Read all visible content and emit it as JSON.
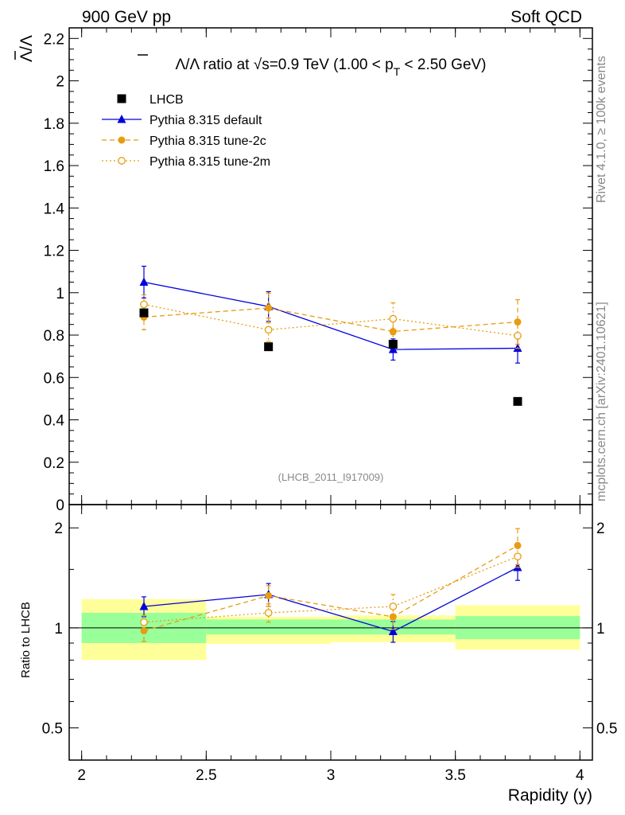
{
  "header": {
    "left": "900 GeV pp",
    "right": "Soft QCD",
    "side_top": "Rivet 4.1.0, ≥ 100k events",
    "side_bottom": "mcplots.cern.ch [arXiv:2401.10621]",
    "analysis_id": "(LHCB_2011_I917009)"
  },
  "chart_data": [
    {
      "type": "scatter",
      "panel": "main",
      "title": "Λ̅/Λ ratio at √s=0.9 TeV (1.00 < pT < 2.50 GeV)",
      "title_parts": {
        "pre": "Λ/Λ ratio at ",
        "root": "√",
        "s_rest": "s=0.9 TeV (1.00 < p",
        "sub": "T",
        "post": " < 2.50 GeV)"
      },
      "ylabel": "Λ/Λ",
      "xlim": [
        1.95,
        4.05
      ],
      "ylim": [
        0,
        2.25
      ],
      "yticks": [
        0,
        0.2,
        0.4,
        0.6,
        0.8,
        1,
        1.2,
        1.4,
        1.6,
        1.8,
        2,
        2.2
      ],
      "ytick_labels": [
        "0",
        "0.2",
        "0.4",
        "0.6",
        "0.8",
        "1",
        "1.2",
        "1.4",
        "1.6",
        "1.8",
        "2",
        "2.2"
      ],
      "legend_position": "top-left",
      "series": [
        {
          "name": "LHCB",
          "color": "#000000",
          "style": "data",
          "x": [
            2.25,
            2.75,
            3.25,
            3.75
          ],
          "y": [
            0.905,
            0.745,
            0.757,
            0.487
          ],
          "err": [
            0,
            0,
            0,
            0
          ]
        },
        {
          "name": "Pythia 8.315 default",
          "color": "#0000dd",
          "style": "solid",
          "marker": "triangle",
          "x": [
            2.25,
            2.75,
            3.25,
            3.75
          ],
          "y": [
            1.05,
            0.935,
            0.732,
            0.738
          ],
          "err": [
            0.075,
            0.07,
            0.05,
            0.07
          ]
        },
        {
          "name": "Pythia 8.315 tune-2c",
          "color": "#e89c10",
          "style": "dashed",
          "marker": "circle",
          "x": [
            2.25,
            2.75,
            3.25,
            3.75
          ],
          "y": [
            0.885,
            0.928,
            0.817,
            0.862
          ],
          "err": [
            0.06,
            0.07,
            0.07,
            0.105
          ]
        },
        {
          "name": "Pythia 8.315 tune-2m",
          "color": "#e89c10",
          "style": "dotted",
          "marker": "open-circle",
          "x": [
            2.25,
            2.75,
            3.25,
            3.75
          ],
          "y": [
            0.945,
            0.825,
            0.877,
            0.797
          ],
          "err": [
            0.045,
            0.055,
            0.075,
            0.06
          ]
        }
      ]
    },
    {
      "type": "scatter",
      "panel": "ratio",
      "ylabel": "Ratio to LHCB",
      "xlabel": "Rapidity (y)",
      "xlim": [
        1.95,
        4.05
      ],
      "ylim": [
        0.4,
        2.35
      ],
      "yscale": "log",
      "xticks": [
        2,
        2.5,
        3,
        3.5,
        4
      ],
      "xtick_labels": [
        "2",
        "2.5",
        "3",
        "3.5",
        "4"
      ],
      "yticks": [
        0.5,
        1,
        2
      ],
      "ytick_labels": [
        "0.5",
        "1",
        "2"
      ],
      "bands": [
        {
          "x": [
            2.0,
            2.5
          ],
          "inner": [
            0.9,
            1.11
          ],
          "outer": [
            0.8,
            1.22
          ]
        },
        {
          "x": [
            2.5,
            3.0
          ],
          "inner": [
            0.955,
            1.06
          ],
          "outer": [
            0.895,
            1.08
          ]
        },
        {
          "x": [
            3.0,
            3.5
          ],
          "inner": [
            0.955,
            1.06
          ],
          "outer": [
            0.905,
            1.09
          ]
        },
        {
          "x": [
            3.5,
            4.0
          ],
          "inner": [
            0.925,
            1.085
          ],
          "outer": [
            0.86,
            1.17
          ]
        }
      ],
      "series": [
        {
          "name": "Pythia 8.315 default",
          "color": "#0000dd",
          "style": "solid",
          "marker": "triangle",
          "x": [
            2.25,
            2.75,
            3.25,
            3.75
          ],
          "y": [
            1.16,
            1.26,
            0.975,
            1.52
          ],
          "err": [
            0.08,
            0.1,
            0.07,
            0.13
          ]
        },
        {
          "name": "Pythia 8.315 tune-2c",
          "color": "#e89c10",
          "style": "dashed",
          "marker": "circle",
          "x": [
            2.25,
            2.75,
            3.25,
            3.75
          ],
          "y": [
            0.98,
            1.25,
            1.08,
            1.77
          ],
          "err": [
            0.07,
            0.09,
            0.09,
            0.22
          ]
        },
        {
          "name": "Pythia 8.315 tune-2m",
          "color": "#e89c10",
          "style": "dotted",
          "marker": "open-circle",
          "x": [
            2.25,
            2.75,
            3.25,
            3.75
          ],
          "y": [
            1.04,
            1.11,
            1.16,
            1.64
          ],
          "err": [
            0.05,
            0.07,
            0.1,
            0.12
          ]
        }
      ]
    }
  ]
}
